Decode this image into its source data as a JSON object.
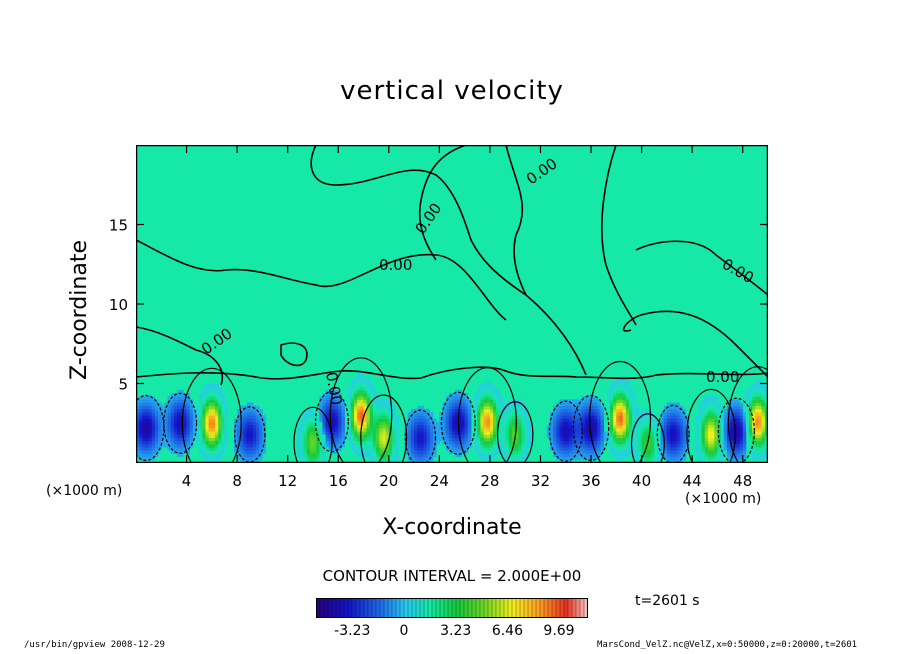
{
  "chart_data": {
    "type": "heatmap",
    "title": "vertical velocity",
    "xlabel": "X-coordinate",
    "ylabel": "Z-coordinate",
    "x_unit": "(×1000 m)",
    "y_unit": "(×1000 m)",
    "xlim": [
      0,
      50
    ],
    "ylim": [
      0,
      20
    ],
    "x_ticks": [
      4,
      8,
      12,
      16,
      20,
      24,
      28,
      32,
      36,
      40,
      44,
      48
    ],
    "y_ticks": [
      5,
      10,
      15
    ],
    "contour_interval_label": "CONTOUR INTERVAL = 2.000E+00",
    "contour_labels": [
      "0.00",
      "0.00",
      "0.00",
      "0.00",
      "0.00",
      "0.00",
      "0.00"
    ],
    "colorbar_ticks": [
      "-3.23",
      "0",
      "3.23",
      "6.46",
      "9.69"
    ],
    "colorbar_range": [
      -5.5,
      11.5
    ],
    "time_label": "t=2601 s",
    "background_color": "#16e8a8",
    "updrafts": [
      {
        "x": 6.0,
        "z": 2.5,
        "peak": 9.0
      },
      {
        "x": 14.0,
        "z": 1.3,
        "peak": 5.0
      },
      {
        "x": 17.8,
        "z": 3.0,
        "peak": 9.5
      },
      {
        "x": 19.6,
        "z": 1.6,
        "peak": 6.5
      },
      {
        "x": 27.8,
        "z": 2.6,
        "peak": 8.8
      },
      {
        "x": 30.0,
        "z": 1.8,
        "peak": 4.5
      },
      {
        "x": 38.3,
        "z": 2.8,
        "peak": 9.4
      },
      {
        "x": 40.5,
        "z": 1.2,
        "peak": 4.0
      },
      {
        "x": 45.5,
        "z": 1.8,
        "peak": 7.0
      },
      {
        "x": 49.2,
        "z": 2.6,
        "peak": 9.0
      }
    ],
    "downdrafts": [
      {
        "x": 0.8,
        "z": 2.2,
        "peak": -4.5
      },
      {
        "x": 3.5,
        "z": 2.5,
        "peak": -4.0
      },
      {
        "x": 9.0,
        "z": 1.8,
        "peak": -3.5
      },
      {
        "x": 15.5,
        "z": 2.6,
        "peak": -4.0
      },
      {
        "x": 22.5,
        "z": 1.6,
        "peak": -3.5
      },
      {
        "x": 25.5,
        "z": 2.5,
        "peak": -4.2
      },
      {
        "x": 34.0,
        "z": 2.0,
        "peak": -4.0
      },
      {
        "x": 36.0,
        "z": 2.2,
        "peak": -4.5
      },
      {
        "x": 42.5,
        "z": 1.8,
        "peak": -3.8
      },
      {
        "x": 47.5,
        "z": 2.0,
        "peak": -4.6
      }
    ]
  },
  "footer": {
    "left": "/usr/bin/gpview  2008-12-29",
    "right": "MarsCond_VelZ.nc@VelZ,x=0:50000,z=0:20000,t=2601"
  }
}
